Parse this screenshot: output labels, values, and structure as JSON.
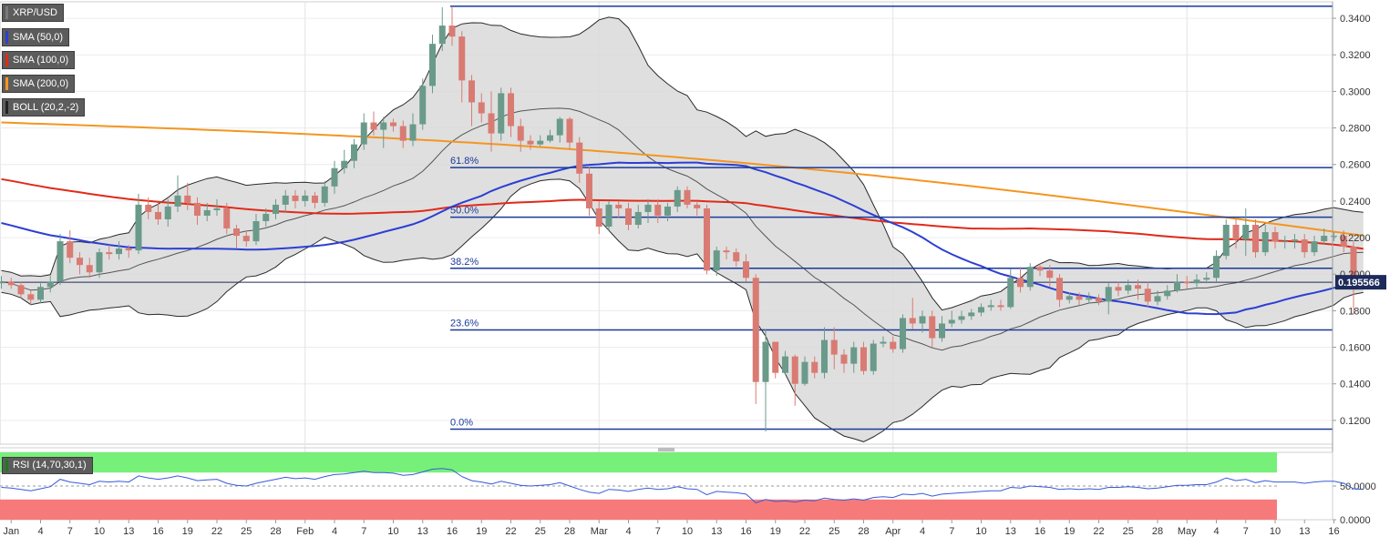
{
  "legend": {
    "symbol": "XRP/USD",
    "sma50": "SMA (50,0)",
    "sma100": "SMA (100,0)",
    "sma200": "SMA (200,0)",
    "boll": "BOLL (20,2,-2)",
    "rsi": "RSI (14,70,30,1)"
  },
  "colors": {
    "up_candle": "#6a9a8a",
    "down_candle": "#d97b73",
    "sma50": "#2c3fd4",
    "sma100": "#e02a1a",
    "sma200": "#f39621",
    "boll_fill": "#d9d9d9",
    "fib_line": "#1a3a9a",
    "price_tag": "#1d2a5a",
    "rsi_line": "#3a5ad8",
    "rsi_overbought": "#77f07a",
    "rsi_oversold": "#f77a7a"
  },
  "chart_data": {
    "type": "candlestick",
    "pair": "XRP/USD",
    "ylim": [
      0.107,
      0.349
    ],
    "y_ticks": [
      "0.1200",
      "0.1400",
      "0.1600",
      "0.1800",
      "0.2000",
      "0.2200",
      "0.2400",
      "0.2600",
      "0.2800",
      "0.3000",
      "0.3200",
      "0.3400"
    ],
    "x_ticks": [
      "Jan",
      "4",
      "7",
      "10",
      "13",
      "16",
      "19",
      "22",
      "25",
      "28",
      "Feb",
      "4",
      "7",
      "10",
      "13",
      "16",
      "19",
      "22",
      "25",
      "28",
      "Mar",
      "4",
      "7",
      "10",
      "13",
      "16",
      "19",
      "22",
      "25",
      "28",
      "Apr",
      "4",
      "7",
      "10",
      "13",
      "16",
      "19",
      "22",
      "25",
      "28",
      "May",
      "4",
      "7",
      "10",
      "13",
      "16"
    ],
    "last_price": "0.195566",
    "fibonacci": [
      {
        "label": "0.0%",
        "value": 0.1152
      },
      {
        "label": "23.6%",
        "value": 0.1695
      },
      {
        "label": "38.2%",
        "value": 0.2032
      },
      {
        "label": "50.0%",
        "value": 0.2312
      },
      {
        "label": "61.8%",
        "value": 0.2583
      }
    ],
    "fib_high": 0.3466,
    "candles": [
      [
        0.195,
        0.196,
        0.192,
        0.199
      ],
      [
        0.196,
        0.194,
        0.192,
        0.198
      ],
      [
        0.194,
        0.189,
        0.187,
        0.196
      ],
      [
        0.189,
        0.186,
        0.183,
        0.191
      ],
      [
        0.186,
        0.193,
        0.184,
        0.195
      ],
      [
        0.193,
        0.196,
        0.19,
        0.199
      ],
      [
        0.196,
        0.218,
        0.194,
        0.222
      ],
      [
        0.218,
        0.209,
        0.206,
        0.224
      ],
      [
        0.209,
        0.205,
        0.2,
        0.212
      ],
      [
        0.205,
        0.201,
        0.198,
        0.209
      ],
      [
        0.201,
        0.212,
        0.198,
        0.214
      ],
      [
        0.212,
        0.211,
        0.208,
        0.216
      ],
      [
        0.211,
        0.214,
        0.208,
        0.218
      ],
      [
        0.214,
        0.213,
        0.209,
        0.216
      ],
      [
        0.213,
        0.238,
        0.211,
        0.244
      ],
      [
        0.238,
        0.234,
        0.23,
        0.242
      ],
      [
        0.234,
        0.23,
        0.227,
        0.239
      ],
      [
        0.23,
        0.237,
        0.226,
        0.241
      ],
      [
        0.237,
        0.243,
        0.234,
        0.254
      ],
      [
        0.243,
        0.239,
        0.235,
        0.25
      ],
      [
        0.239,
        0.232,
        0.227,
        0.242
      ],
      [
        0.232,
        0.235,
        0.229,
        0.239
      ],
      [
        0.235,
        0.236,
        0.232,
        0.241
      ],
      [
        0.236,
        0.225,
        0.222,
        0.239
      ],
      [
        0.225,
        0.221,
        0.214,
        0.227
      ],
      [
        0.221,
        0.218,
        0.215,
        0.224
      ],
      [
        0.218,
        0.229,
        0.216,
        0.233
      ],
      [
        0.229,
        0.233,
        0.226,
        0.236
      ],
      [
        0.233,
        0.238,
        0.23,
        0.241
      ],
      [
        0.238,
        0.243,
        0.234,
        0.246
      ],
      [
        0.243,
        0.24,
        0.236,
        0.246
      ],
      [
        0.24,
        0.243,
        0.237,
        0.246
      ],
      [
        0.243,
        0.239,
        0.236,
        0.245
      ],
      [
        0.239,
        0.248,
        0.237,
        0.251
      ],
      [
        0.248,
        0.258,
        0.244,
        0.262
      ],
      [
        0.258,
        0.262,
        0.255,
        0.268
      ],
      [
        0.262,
        0.271,
        0.258,
        0.274
      ],
      [
        0.271,
        0.283,
        0.268,
        0.288
      ],
      [
        0.283,
        0.279,
        0.276,
        0.289
      ],
      [
        0.279,
        0.283,
        0.269,
        0.286
      ],
      [
        0.283,
        0.281,
        0.278,
        0.285
      ],
      [
        0.281,
        0.273,
        0.269,
        0.284
      ],
      [
        0.273,
        0.282,
        0.27,
        0.288
      ],
      [
        0.282,
        0.303,
        0.279,
        0.307
      ],
      [
        0.303,
        0.326,
        0.299,
        0.331
      ],
      [
        0.326,
        0.336,
        0.322,
        0.346
      ],
      [
        0.336,
        0.33,
        0.325,
        0.346
      ],
      [
        0.33,
        0.306,
        0.294,
        0.333
      ],
      [
        0.306,
        0.294,
        0.281,
        0.309
      ],
      [
        0.294,
        0.288,
        0.283,
        0.299
      ],
      [
        0.288,
        0.277,
        0.267,
        0.3
      ],
      [
        0.277,
        0.299,
        0.273,
        0.302
      ],
      [
        0.299,
        0.281,
        0.275,
        0.302
      ],
      [
        0.281,
        0.273,
        0.267,
        0.285
      ],
      [
        0.273,
        0.271,
        0.268,
        0.276
      ],
      [
        0.271,
        0.273,
        0.27,
        0.276
      ],
      [
        0.273,
        0.276,
        0.272,
        0.279
      ],
      [
        0.276,
        0.285,
        0.272,
        0.286
      ],
      [
        0.285,
        0.272,
        0.268,
        0.286
      ],
      [
        0.272,
        0.255,
        0.25,
        0.275
      ],
      [
        0.255,
        0.236,
        0.232,
        0.259
      ],
      [
        0.236,
        0.226,
        0.222,
        0.24
      ],
      [
        0.226,
        0.238,
        0.224,
        0.24
      ],
      [
        0.238,
        0.236,
        0.231,
        0.24
      ],
      [
        0.236,
        0.227,
        0.224,
        0.239
      ],
      [
        0.227,
        0.234,
        0.225,
        0.238
      ],
      [
        0.234,
        0.238,
        0.228,
        0.241
      ],
      [
        0.238,
        0.232,
        0.228,
        0.241
      ],
      [
        0.232,
        0.237,
        0.229,
        0.239
      ],
      [
        0.237,
        0.246,
        0.234,
        0.248
      ],
      [
        0.246,
        0.238,
        0.236,
        0.248
      ],
      [
        0.238,
        0.236,
        0.232,
        0.24
      ],
      [
        0.236,
        0.202,
        0.2,
        0.238
      ],
      [
        0.202,
        0.213,
        0.199,
        0.215
      ],
      [
        0.213,
        0.212,
        0.208,
        0.215
      ],
      [
        0.212,
        0.207,
        0.204,
        0.214
      ],
      [
        0.207,
        0.198,
        0.196,
        0.211
      ],
      [
        0.198,
        0.141,
        0.129,
        0.2
      ],
      [
        0.141,
        0.163,
        0.114,
        0.17
      ],
      [
        0.163,
        0.146,
        0.143,
        0.163
      ],
      [
        0.146,
        0.155,
        0.145,
        0.158
      ],
      [
        0.155,
        0.14,
        0.128,
        0.156
      ],
      [
        0.14,
        0.152,
        0.139,
        0.155
      ],
      [
        0.152,
        0.146,
        0.143,
        0.155
      ],
      [
        0.146,
        0.164,
        0.143,
        0.171
      ],
      [
        0.164,
        0.156,
        0.148,
        0.171
      ],
      [
        0.156,
        0.151,
        0.146,
        0.159
      ],
      [
        0.151,
        0.16,
        0.146,
        0.163
      ],
      [
        0.16,
        0.147,
        0.145,
        0.163
      ],
      [
        0.147,
        0.162,
        0.145,
        0.164
      ],
      [
        0.162,
        0.163,
        0.16,
        0.166
      ],
      [
        0.163,
        0.159,
        0.157,
        0.166
      ],
      [
        0.159,
        0.176,
        0.157,
        0.178
      ],
      [
        0.176,
        0.173,
        0.17,
        0.187
      ],
      [
        0.173,
        0.177,
        0.168,
        0.18
      ],
      [
        0.177,
        0.165,
        0.16,
        0.18
      ],
      [
        0.165,
        0.173,
        0.163,
        0.177
      ],
      [
        0.173,
        0.175,
        0.171,
        0.18
      ],
      [
        0.175,
        0.177,
        0.173,
        0.18
      ],
      [
        0.177,
        0.179,
        0.175,
        0.181
      ],
      [
        0.179,
        0.182,
        0.177,
        0.184
      ],
      [
        0.182,
        0.183,
        0.18,
        0.186
      ],
      [
        0.183,
        0.182,
        0.18,
        0.186
      ],
      [
        0.182,
        0.198,
        0.181,
        0.203
      ],
      [
        0.198,
        0.193,
        0.19,
        0.204
      ],
      [
        0.193,
        0.204,
        0.191,
        0.206
      ],
      [
        0.204,
        0.202,
        0.199,
        0.206
      ],
      [
        0.202,
        0.198,
        0.193,
        0.205
      ],
      [
        0.198,
        0.186,
        0.182,
        0.2
      ],
      [
        0.186,
        0.188,
        0.184,
        0.19
      ],
      [
        0.188,
        0.186,
        0.183,
        0.19
      ],
      [
        0.186,
        0.187,
        0.184,
        0.19
      ],
      [
        0.187,
        0.185,
        0.183,
        0.189
      ],
      [
        0.185,
        0.193,
        0.178,
        0.195
      ],
      [
        0.193,
        0.191,
        0.188,
        0.196
      ],
      [
        0.191,
        0.194,
        0.189,
        0.197
      ],
      [
        0.194,
        0.192,
        0.186,
        0.197
      ],
      [
        0.192,
        0.185,
        0.182,
        0.196
      ],
      [
        0.185,
        0.188,
        0.183,
        0.191
      ],
      [
        0.188,
        0.191,
        0.186,
        0.194
      ],
      [
        0.191,
        0.196,
        0.19,
        0.2
      ],
      [
        0.196,
        0.195,
        0.192,
        0.199
      ],
      [
        0.195,
        0.197,
        0.193,
        0.2
      ],
      [
        0.197,
        0.198,
        0.195,
        0.201
      ],
      [
        0.198,
        0.21,
        0.196,
        0.213
      ],
      [
        0.21,
        0.227,
        0.208,
        0.23
      ],
      [
        0.227,
        0.219,
        0.214,
        0.231
      ],
      [
        0.219,
        0.227,
        0.21,
        0.236
      ],
      [
        0.227,
        0.212,
        0.209,
        0.23
      ],
      [
        0.212,
        0.223,
        0.21,
        0.227
      ],
      [
        0.223,
        0.218,
        0.214,
        0.226
      ],
      [
        0.218,
        0.218,
        0.214,
        0.221
      ],
      [
        0.218,
        0.219,
        0.214,
        0.222
      ],
      [
        0.219,
        0.212,
        0.209,
        0.222
      ],
      [
        0.212,
        0.218,
        0.21,
        0.221
      ],
      [
        0.218,
        0.221,
        0.216,
        0.225
      ],
      [
        0.221,
        0.221,
        0.218,
        0.223
      ],
      [
        0.221,
        0.215,
        0.212,
        0.224
      ],
      [
        0.215,
        0.197,
        0.178,
        0.218
      ],
      [
        0.197,
        0.1956,
        0.193,
        0.198
      ]
    ],
    "rsi": {
      "ylim": [
        0,
        100
      ],
      "y_ticks": [
        "50.0000",
        "0.0000"
      ],
      "overbought": 70,
      "oversold": 30,
      "values": [
        48,
        47,
        45,
        43,
        46,
        49,
        60,
        56,
        54,
        52,
        57,
        56,
        57,
        56,
        65,
        62,
        60,
        62,
        65,
        62,
        58,
        59,
        60,
        54,
        51,
        50,
        54,
        57,
        60,
        63,
        61,
        62,
        60,
        64,
        67,
        68,
        70,
        72,
        70,
        70,
        69,
        66,
        67,
        71,
        75,
        76,
        74,
        64,
        58,
        56,
        53,
        57,
        54,
        51,
        50,
        51,
        52,
        55,
        50,
        45,
        41,
        39,
        45,
        44,
        42,
        45,
        47,
        45,
        46,
        49,
        46,
        45,
        37,
        42,
        41,
        40,
        38,
        25,
        30,
        27,
        28,
        26,
        29,
        28,
        32,
        30,
        29,
        31,
        29,
        33,
        34,
        33,
        38,
        37,
        39,
        35,
        38,
        39,
        40,
        41,
        42,
        43,
        43,
        48,
        47,
        50,
        49,
        48,
        45,
        46,
        45,
        46,
        45,
        48,
        48,
        49,
        48,
        46,
        47,
        49,
        51,
        51,
        52,
        52,
        56,
        62,
        58,
        60,
        55,
        58,
        56,
        56,
        56,
        54,
        56,
        57,
        57,
        54,
        46,
        45
      ]
    }
  }
}
